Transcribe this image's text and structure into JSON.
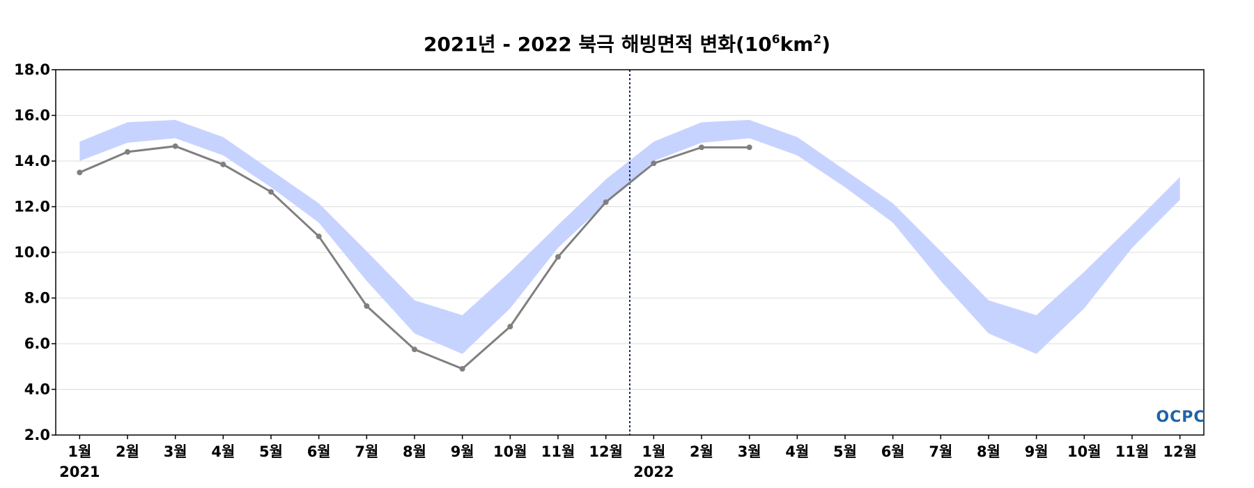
{
  "chart_data": {
    "type": "line",
    "title": {
      "main": "2021년 - 2022 북극 해빙면적 변화(10",
      "sup1": "6",
      "mid": "km",
      "sup2": "2",
      "end": ")"
    },
    "ylim": [
      2.0,
      18.0
    ],
    "yticks": [
      "2.0",
      "4.0",
      "6.0",
      "8.0",
      "10.0",
      "12.0",
      "14.0",
      "16.0",
      "18.0"
    ],
    "yticks_values": [
      2,
      4,
      6,
      8,
      10,
      12,
      14,
      16,
      18
    ],
    "categories": [
      "1월",
      "2월",
      "3월",
      "4월",
      "5월",
      "6월",
      "7월",
      "8월",
      "9월",
      "10월",
      "11월",
      "12월",
      "1월",
      "2월",
      "3월",
      "4월",
      "5월",
      "6월",
      "7월",
      "8월",
      "9월",
      "10월",
      "11월",
      "12월"
    ],
    "year_labels": [
      {
        "label": "2021",
        "start_index": 0
      },
      {
        "label": "2022",
        "start_index": 12
      }
    ],
    "divider_between_index": [
      11,
      12
    ],
    "grid": true,
    "series": [
      {
        "kind": "band",
        "color": "#c7d3ff",
        "upper": [
          14.85,
          15.7,
          15.8,
          15.05,
          13.6,
          12.15,
          10.05,
          7.9,
          7.25,
          9.15,
          11.2,
          13.2,
          14.85,
          15.7,
          15.8,
          15.05,
          13.6,
          12.15,
          10.05,
          7.9,
          7.25,
          9.15,
          11.2,
          13.3
        ],
        "lower": [
          14.0,
          14.8,
          15.0,
          14.25,
          12.85,
          11.3,
          8.75,
          6.45,
          5.55,
          7.55,
          10.2,
          12.15,
          14.0,
          14.8,
          15.0,
          14.25,
          12.85,
          11.3,
          8.75,
          6.45,
          5.55,
          7.55,
          10.2,
          12.3
        ]
      },
      {
        "kind": "line",
        "color": "#7f7f7f",
        "values": [
          13.5,
          14.4,
          14.65,
          13.85,
          12.65,
          10.7,
          7.65,
          5.75,
          4.9,
          6.75,
          9.8,
          12.2,
          13.9,
          14.6,
          14.6,
          null,
          null,
          null,
          null,
          null,
          null,
          null,
          null,
          null
        ]
      }
    ]
  },
  "logo": {
    "text": "OCPC",
    "color": "#1f63a8"
  },
  "colors": {
    "axis": "#000000",
    "grid": "#dddddd",
    "divider": "#1a2a6c"
  }
}
